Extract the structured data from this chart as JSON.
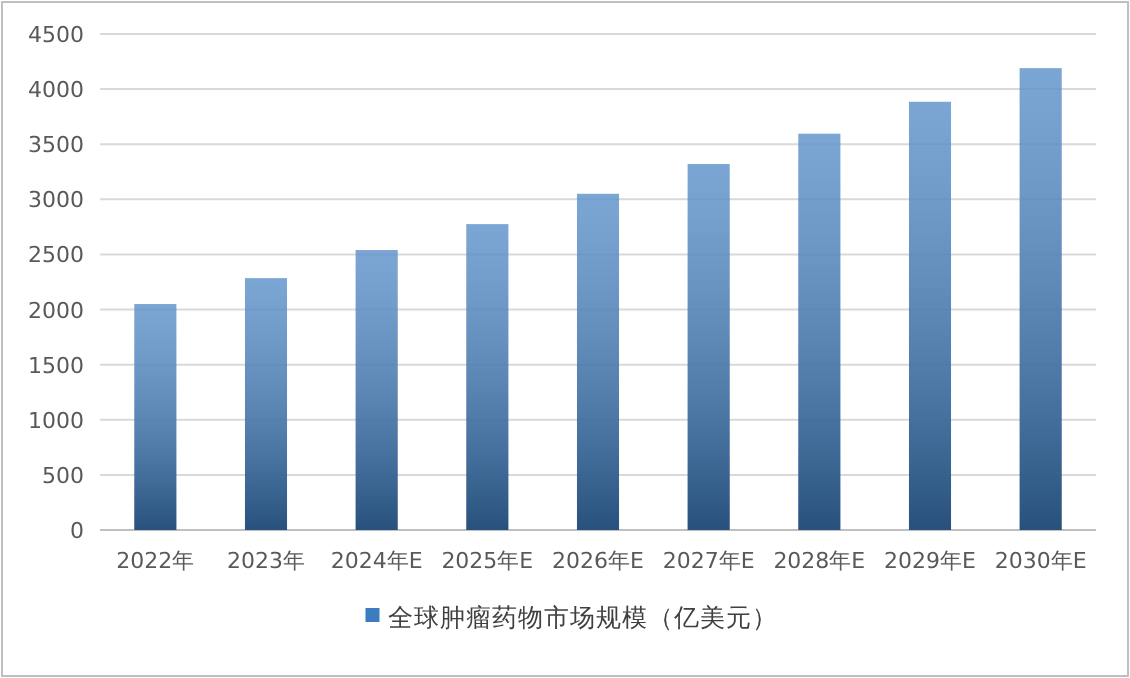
{
  "chart_data": {
    "type": "bar",
    "categories": [
      "2022年",
      "2023年",
      "2024年E",
      "2025年E",
      "2026年E",
      "2027年E",
      "2028年E",
      "2029年E",
      "2030年E"
    ],
    "series": [
      {
        "name": "全球肿瘤药物市场规模（亿美元）",
        "color": "#3d7cc0",
        "values": [
          2050,
          2285,
          2540,
          2775,
          3050,
          3320,
          3595,
          3885,
          4190
        ]
      }
    ],
    "ylim": [
      0,
      4500
    ],
    "yticks": [
      0,
      500,
      1000,
      1500,
      2000,
      2500,
      3000,
      3500,
      4000,
      4500
    ],
    "grid": "y",
    "legend": "bottom"
  }
}
